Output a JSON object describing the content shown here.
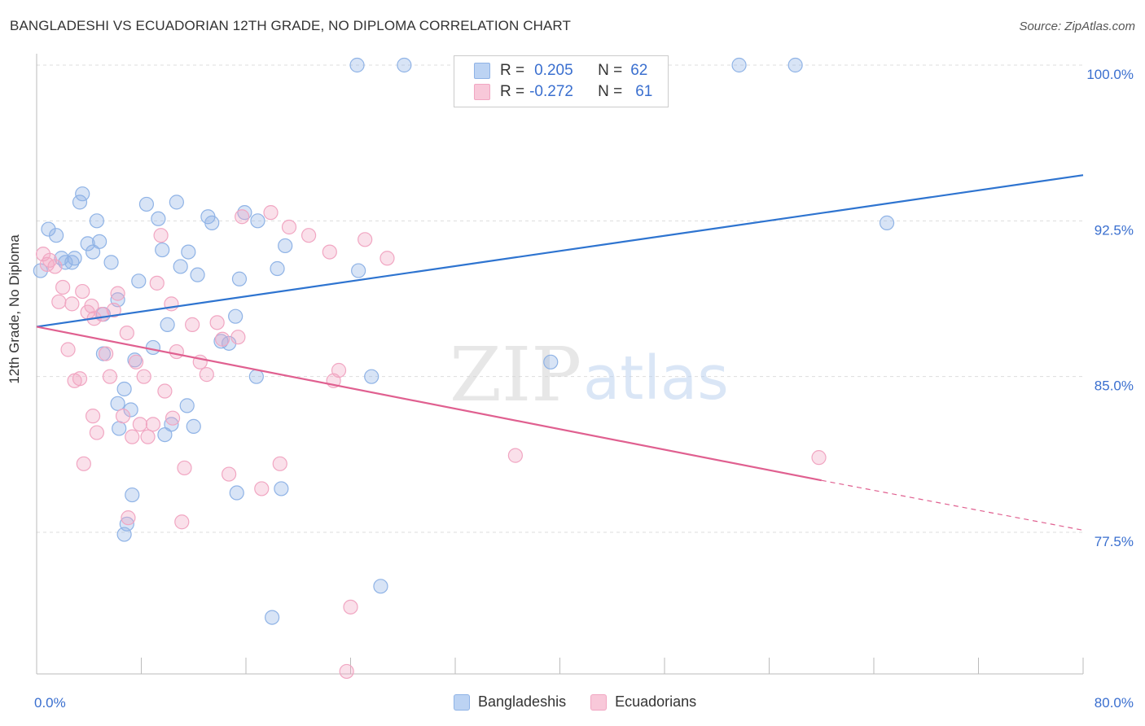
{
  "header": {
    "title": "BANGLADESHI VS ECUADORIAN 12TH GRADE, NO DIPLOMA CORRELATION CHART",
    "source": "Source: ZipAtlas.com"
  },
  "legend": {
    "rows": [
      {
        "r_label": "R =",
        "r_value": "0.205",
        "n_label": "N =",
        "n_value": "62"
      },
      {
        "r_label": "R =",
        "r_value": "-0.272",
        "n_label": "N =",
        "n_value": "61"
      }
    ]
  },
  "watermark": {
    "zip": "ZIP",
    "atlas": "atlas"
  },
  "chart_data": {
    "type": "scatter",
    "title": "BANGLADESHI VS ECUADORIAN 12TH GRADE, NO DIPLOMA CORRELATION CHART",
    "xlabel": "",
    "ylabel": "12th Grade, No Diploma",
    "xlim": [
      0,
      80
    ],
    "ylim": [
      71.5,
      101.5
    ],
    "x_tick_labels": [
      "0.0%",
      "80.0%"
    ],
    "y_ticks": [
      77.5,
      85.0,
      92.5,
      100.0
    ],
    "y_tick_labels": [
      "77.5%",
      "85.0%",
      "92.5%",
      "100.0%"
    ],
    "grid": true,
    "legend_position": "top-center",
    "series": [
      {
        "name": "Bangladeshis",
        "color": "#8fb3e6",
        "line_color": "#2e74d0",
        "trend": {
          "x0": 0,
          "y0": 87.4,
          "x1": 80,
          "y1": 94.7
        },
        "points": [
          [
            24.5,
            100
          ],
          [
            28.1,
            100
          ],
          [
            53.7,
            100
          ],
          [
            58.0,
            100
          ],
          [
            0.3,
            90.1
          ],
          [
            0.9,
            92.1
          ],
          [
            1.5,
            91.8
          ],
          [
            1.9,
            90.7
          ],
          [
            2.2,
            90.5
          ],
          [
            2.7,
            90.5
          ],
          [
            2.9,
            90.7
          ],
          [
            3.3,
            93.4
          ],
          [
            3.5,
            93.8
          ],
          [
            3.9,
            91.4
          ],
          [
            4.3,
            91.0
          ],
          [
            4.6,
            92.5
          ],
          [
            4.8,
            91.5
          ],
          [
            5.1,
            86.1
          ],
          [
            5.7,
            90.5
          ],
          [
            5.1,
            88.0
          ],
          [
            6.2,
            88.7
          ],
          [
            6.7,
            84.4
          ],
          [
            6.2,
            83.7
          ],
          [
            7.2,
            83.4
          ],
          [
            7.5,
            85.8
          ],
          [
            7.8,
            89.6
          ],
          [
            8.4,
            93.3
          ],
          [
            8.9,
            86.4
          ],
          [
            9.3,
            92.6
          ],
          [
            9.6,
            91.1
          ],
          [
            10.0,
            87.5
          ],
          [
            10.3,
            82.7
          ],
          [
            10.7,
            93.4
          ],
          [
            11.0,
            90.3
          ],
          [
            11.5,
            83.6
          ],
          [
            11.6,
            91.0
          ],
          [
            12.0,
            82.6
          ],
          [
            12.3,
            89.9
          ],
          [
            13.1,
            92.7
          ],
          [
            13.4,
            92.4
          ],
          [
            14.1,
            86.7
          ],
          [
            14.7,
            86.6
          ],
          [
            15.2,
            87.9
          ],
          [
            15.5,
            89.7
          ],
          [
            15.9,
            92.9
          ],
          [
            16.8,
            85.0
          ],
          [
            16.9,
            92.5
          ],
          [
            18.4,
            90.2
          ],
          [
            19.0,
            91.3
          ],
          [
            7.3,
            79.3
          ],
          [
            6.9,
            77.9
          ],
          [
            6.7,
            77.4
          ],
          [
            15.3,
            79.4
          ],
          [
            18.7,
            79.6
          ],
          [
            24.6,
            90.1
          ],
          [
            25.6,
            85.0
          ],
          [
            26.3,
            74.9
          ],
          [
            18.0,
            73.4
          ],
          [
            39.3,
            85.7
          ],
          [
            65.0,
            92.4
          ],
          [
            6.3,
            82.5
          ],
          [
            9.8,
            82.2
          ]
        ]
      },
      {
        "name": "Ecuadorians",
        "color": "#f1a6c2",
        "line_color": "#e06090",
        "trend": {
          "x0": 0,
          "y0": 87.4,
          "x1": 60,
          "y1": 80.0
        },
        "trend_dashed_to": {
          "x": 80,
          "y": 77.6
        },
        "points": [
          [
            0.5,
            90.9
          ],
          [
            0.8,
            90.4
          ],
          [
            1.0,
            90.6
          ],
          [
            1.4,
            90.3
          ],
          [
            1.7,
            88.6
          ],
          [
            2.0,
            89.3
          ],
          [
            2.4,
            86.3
          ],
          [
            2.7,
            88.5
          ],
          [
            2.9,
            84.8
          ],
          [
            3.3,
            84.9
          ],
          [
            3.5,
            89.1
          ],
          [
            3.9,
            88.1
          ],
          [
            4.2,
            88.4
          ],
          [
            4.4,
            87.8
          ],
          [
            4.6,
            82.3
          ],
          [
            5.0,
            88.0
          ],
          [
            5.3,
            86.1
          ],
          [
            5.6,
            85.0
          ],
          [
            5.9,
            88.2
          ],
          [
            6.2,
            89.0
          ],
          [
            6.6,
            83.1
          ],
          [
            6.9,
            87.1
          ],
          [
            7.3,
            82.1
          ],
          [
            7.6,
            85.7
          ],
          [
            7.9,
            82.7
          ],
          [
            8.2,
            85.0
          ],
          [
            8.5,
            82.1
          ],
          [
            8.9,
            82.7
          ],
          [
            9.2,
            89.5
          ],
          [
            9.5,
            91.8
          ],
          [
            9.8,
            84.3
          ],
          [
            10.3,
            88.5
          ],
          [
            10.7,
            86.2
          ],
          [
            11.3,
            80.6
          ],
          [
            11.9,
            87.5
          ],
          [
            12.5,
            85.7
          ],
          [
            13.0,
            85.1
          ],
          [
            13.8,
            87.6
          ],
          [
            14.2,
            86.8
          ],
          [
            14.7,
            80.3
          ],
          [
            15.4,
            86.9
          ],
          [
            15.7,
            92.7
          ],
          [
            17.2,
            79.6
          ],
          [
            17.9,
            92.9
          ],
          [
            18.6,
            80.8
          ],
          [
            19.3,
            92.2
          ],
          [
            20.8,
            91.8
          ],
          [
            22.4,
            91.0
          ],
          [
            22.7,
            84.8
          ],
          [
            23.1,
            85.3
          ],
          [
            23.7,
            70.8
          ],
          [
            24.0,
            73.9
          ],
          [
            25.1,
            91.6
          ],
          [
            26.8,
            90.7
          ],
          [
            36.6,
            81.2
          ],
          [
            59.8,
            81.1
          ],
          [
            7.0,
            78.2
          ],
          [
            11.1,
            78.0
          ],
          [
            4.3,
            83.1
          ],
          [
            10.4,
            83.0
          ],
          [
            3.6,
            80.8
          ]
        ]
      }
    ]
  }
}
